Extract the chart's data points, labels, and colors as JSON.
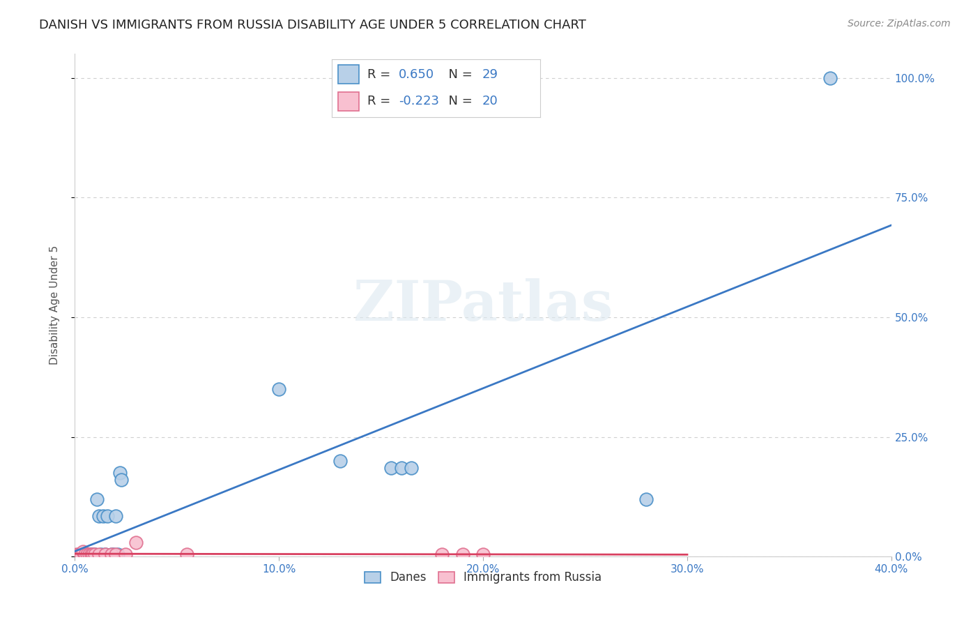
{
  "title": "DANISH VS IMMIGRANTS FROM RUSSIA DISABILITY AGE UNDER 5 CORRELATION CHART",
  "source": "Source: ZipAtlas.com",
  "ylabel": "Disability Age Under 5",
  "xtick_vals": [
    0.0,
    0.1,
    0.2,
    0.3,
    0.4
  ],
  "xtick_labels": [
    "0.0%",
    "10.0%",
    "20.0%",
    "30.0%",
    "40.0%"
  ],
  "ytick_vals": [
    0.0,
    0.25,
    0.5,
    0.75,
    1.0
  ],
  "ytick_labels": [
    "0.0%",
    "25.0%",
    "50.0%",
    "75.0%",
    "100.0%"
  ],
  "xlim": [
    0.0,
    0.4
  ],
  "ylim": [
    0.0,
    1.05
  ],
  "danes_R": 0.65,
  "danes_N": 29,
  "russia_R": -0.223,
  "russia_N": 20,
  "danes_color": "#b8d0e8",
  "danes_edge_color": "#4a90c8",
  "russia_color": "#f8c0d0",
  "russia_edge_color": "#e07090",
  "danes_line_color": "#3a78c4",
  "russia_line_color": "#d84060",
  "danes_x": [
    0.002,
    0.003,
    0.004,
    0.005,
    0.006,
    0.006,
    0.007,
    0.008,
    0.009,
    0.01,
    0.011,
    0.012,
    0.013,
    0.014,
    0.015,
    0.016,
    0.018,
    0.019,
    0.02,
    0.021,
    0.022,
    0.023,
    0.1,
    0.13,
    0.155,
    0.16,
    0.165,
    0.28,
    0.37
  ],
  "danes_y": [
    0.004,
    0.004,
    0.004,
    0.004,
    0.004,
    0.004,
    0.004,
    0.004,
    0.004,
    0.004,
    0.12,
    0.085,
    0.004,
    0.085,
    0.004,
    0.085,
    0.004,
    0.004,
    0.085,
    0.004,
    0.175,
    0.16,
    0.35,
    0.2,
    0.185,
    0.185,
    0.185,
    0.12,
    1.0
  ],
  "russia_x": [
    0.001,
    0.002,
    0.003,
    0.004,
    0.005,
    0.006,
    0.007,
    0.008,
    0.009,
    0.01,
    0.012,
    0.015,
    0.018,
    0.02,
    0.025,
    0.03,
    0.055,
    0.18,
    0.19,
    0.2
  ],
  "russia_y": [
    0.004,
    0.004,
    0.004,
    0.01,
    0.004,
    0.004,
    0.004,
    0.004,
    0.004,
    0.004,
    0.004,
    0.004,
    0.004,
    0.004,
    0.004,
    0.03,
    0.004,
    0.004,
    0.004,
    0.004
  ],
  "watermark_text": "ZIPatlas",
  "bg_color": "#ffffff",
  "grid_color": "#d0d0d0",
  "title_fontsize": 13,
  "label_fontsize": 11,
  "tick_fontsize": 11,
  "legend_fontsize": 13,
  "source_fontsize": 10,
  "blue_text_color": "#3a78c4",
  "label_color": "#555555"
}
